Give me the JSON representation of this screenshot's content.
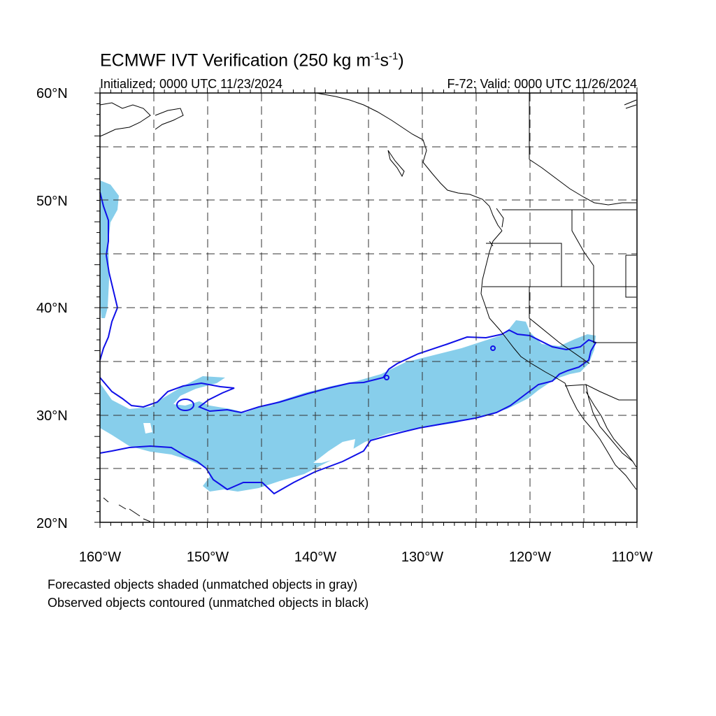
{
  "title": {
    "main": "ECMWF IVT Verification (250 kg m",
    "sup1": "-1",
    "mid": "s",
    "sup2": "-1",
    "end": ")"
  },
  "initialized": "Initialized: 0000 UTC 11/23/2024",
  "valid": "F-72: Valid: 0000 UTC 11/26/2024",
  "axes": {
    "y_ticks": [
      "20°N",
      "30°N",
      "40°N",
      "50°N",
      "60°N"
    ],
    "x_ticks": [
      "160°W",
      "150°W",
      "140°W",
      "130°W",
      "120°W",
      "110°W"
    ]
  },
  "notes": [
    "Forecasted objects shaded (unmatched objects in gray)",
    "Observed objects contoured (unmatched objects in black)"
  ],
  "colors": {
    "forecast_fill": "#87ceeb",
    "observed_contour": "#1010e8",
    "coastline": "#000000",
    "grid": "#000000"
  }
}
